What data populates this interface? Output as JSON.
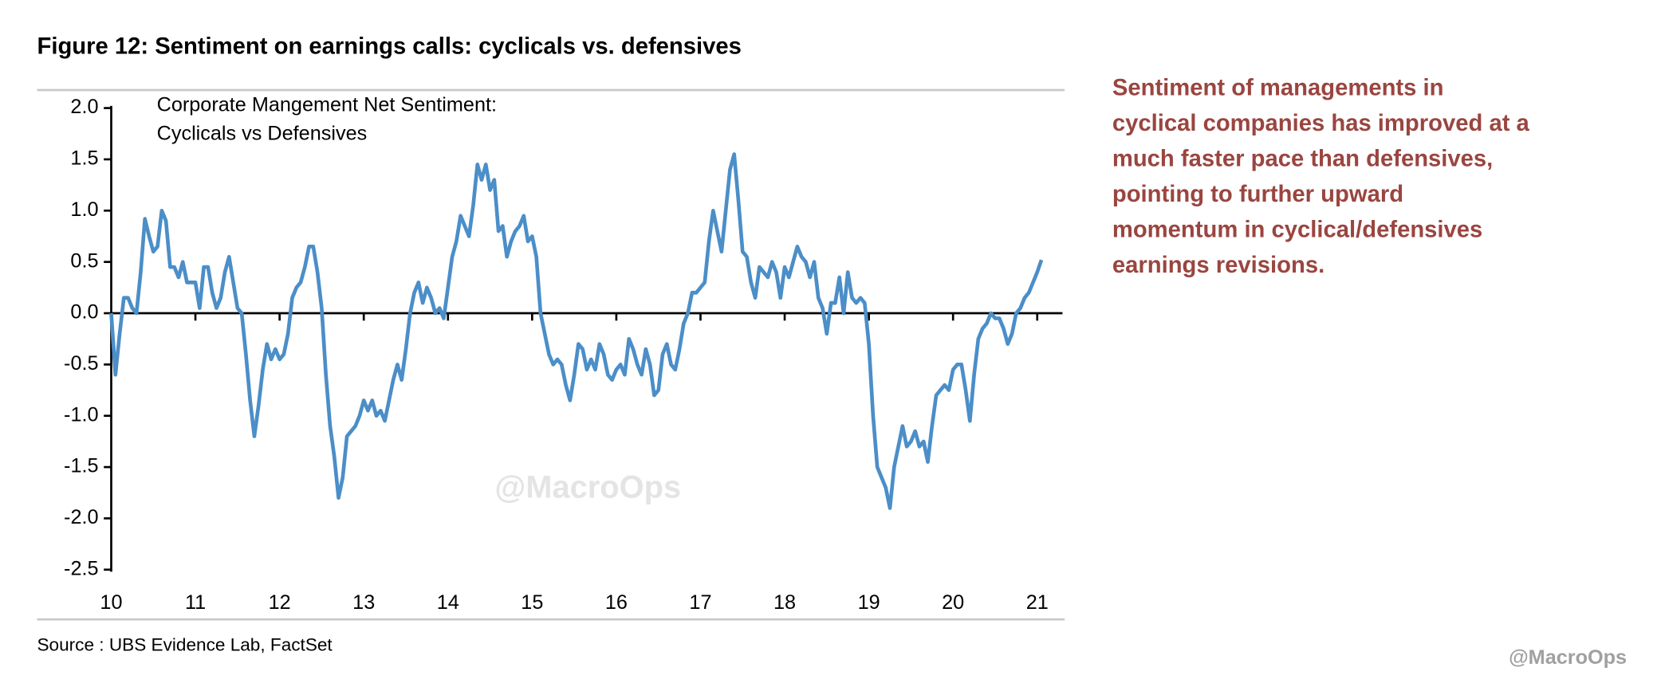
{
  "chart_data": {
    "type": "line",
    "title": "Figure 12: Sentiment on earnings calls: cyclicals vs. defensives",
    "annotations": [
      "Corporate Mangement Net Sentiment:",
      "Cyclicals vs Defensives"
    ],
    "source": "Source : UBS Evidence Lab, FactSet",
    "commentary": [
      "Sentiment of managements in",
      "cyclical companies has improved at a",
      "much faster pace than defensives,",
      "pointing to further upward",
      "momentum in cyclical/defensives",
      "earnings revisions."
    ],
    "commentary_color": "#9a4540",
    "watermarks": [
      "@MacroOps",
      "@MacroOps"
    ],
    "xlim": [
      10,
      21.3
    ],
    "xticks": [
      10,
      11,
      12,
      13,
      14,
      15,
      16,
      17,
      18,
      19,
      20,
      21
    ],
    "ylim": [
      -2.5,
      2.0
    ],
    "yticks": [
      {
        "value": 2.0,
        "label": "2.0"
      },
      {
        "value": 1.5,
        "label": "1.5"
      },
      {
        "value": 1.0,
        "label": "1.0"
      },
      {
        "value": 0.5,
        "label": "0.5"
      },
      {
        "value": 0.0,
        "label": "0.0"
      },
      {
        "value": -0.5,
        "label": "-0.5"
      },
      {
        "value": -1.0,
        "label": "-1.0"
      },
      {
        "value": -1.5,
        "label": "-1.5"
      },
      {
        "value": -2.0,
        "label": "-2.0"
      },
      {
        "value": -2.5,
        "label": "-2.5"
      }
    ],
    "grid": false,
    "x": [
      10,
      10.05,
      10.1,
      10.15,
      10.2,
      10.25,
      10.3,
      10.35,
      10.4,
      10.45,
      10.5,
      10.55,
      10.6,
      10.65,
      10.7,
      10.75,
      10.8,
      10.85,
      10.9,
      10.95,
      11,
      11.05,
      11.1,
      11.15,
      11.2,
      11.25,
      11.3,
      11.35,
      11.4,
      11.45,
      11.5,
      11.55,
      11.6,
      11.65,
      11.7,
      11.75,
      11.8,
      11.85,
      11.9,
      11.95,
      12,
      12.05,
      12.1,
      12.15,
      12.2,
      12.25,
      12.3,
      12.35,
      12.4,
      12.45,
      12.5,
      12.55,
      12.6,
      12.65,
      12.7,
      12.75,
      12.8,
      12.85,
      12.9,
      12.95,
      13,
      13.05,
      13.1,
      13.15,
      13.2,
      13.25,
      13.3,
      13.35,
      13.4,
      13.45,
      13.5,
      13.55,
      13.6,
      13.65,
      13.7,
      13.75,
      13.8,
      13.85,
      13.9,
      13.95,
      14,
      14.05,
      14.1,
      14.15,
      14.2,
      14.25,
      14.3,
      14.35,
      14.4,
      14.45,
      14.5,
      14.55,
      14.6,
      14.65,
      14.7,
      14.75,
      14.8,
      14.85,
      14.9,
      14.95,
      15,
      15.05,
      15.1,
      15.15,
      15.2,
      15.25,
      15.3,
      15.35,
      15.4,
      15.45,
      15.5,
      15.55,
      15.6,
      15.65,
      15.7,
      15.75,
      15.8,
      15.85,
      15.9,
      15.95,
      16,
      16.05,
      16.1,
      16.15,
      16.2,
      16.25,
      16.3,
      16.35,
      16.4,
      16.45,
      16.5,
      16.55,
      16.6,
      16.65,
      16.7,
      16.75,
      16.8,
      16.85,
      16.9,
      16.95,
      17,
      17.05,
      17.1,
      17.15,
      17.2,
      17.25,
      17.3,
      17.35,
      17.4,
      17.45,
      17.5,
      17.55,
      17.6,
      17.65,
      17.7,
      17.75,
      17.8,
      17.85,
      17.9,
      17.95,
      18,
      18.05,
      18.1,
      18.15,
      18.2,
      18.25,
      18.3,
      18.35,
      18.4,
      18.45,
      18.5,
      18.55,
      18.6,
      18.65,
      18.7,
      18.75,
      18.8,
      18.85,
      18.9,
      18.95,
      19,
      19.05,
      19.1,
      19.15,
      19.2,
      19.25,
      19.3,
      19.35,
      19.4,
      19.45,
      19.5,
      19.55,
      19.6,
      19.65,
      19.7,
      19.75,
      19.8,
      19.85,
      19.9,
      19.95,
      20,
      20.05,
      20.1,
      20.15,
      20.2,
      20.25,
      20.3,
      20.35,
      20.4,
      20.45,
      20.5,
      20.55,
      20.6,
      20.65,
      20.7,
      20.75,
      20.8,
      20.85,
      20.9,
      20.95,
      21,
      21.05
    ],
    "series": [
      {
        "color": "#4b8ec8",
        "values": [
          0.0,
          -0.6,
          -0.2,
          0.15,
          0.15,
          0.05,
          0.0,
          0.4,
          0.92,
          0.75,
          0.6,
          0.65,
          1.0,
          0.9,
          0.45,
          0.45,
          0.35,
          0.5,
          0.3,
          0.3,
          0.3,
          0.05,
          0.45,
          0.45,
          0.2,
          0.05,
          0.15,
          0.4,
          0.55,
          0.3,
          0.05,
          0.0,
          -0.4,
          -0.85,
          -1.2,
          -0.9,
          -0.55,
          -0.3,
          -0.45,
          -0.35,
          -0.45,
          -0.4,
          -0.2,
          0.15,
          0.25,
          0.3,
          0.45,
          0.65,
          0.65,
          0.4,
          0.05,
          -0.6,
          -1.1,
          -1.4,
          -1.8,
          -1.6,
          -1.2,
          -1.15,
          -1.1,
          -1.0,
          -0.85,
          -0.95,
          -0.85,
          -1.0,
          -0.95,
          -1.05,
          -0.85,
          -0.65,
          -0.5,
          -0.65,
          -0.35,
          0.0,
          0.2,
          0.3,
          0.1,
          0.25,
          0.15,
          0.0,
          0.05,
          -0.05,
          0.25,
          0.55,
          0.7,
          0.95,
          0.85,
          0.75,
          1.05,
          1.45,
          1.3,
          1.45,
          1.2,
          1.3,
          0.8,
          0.85,
          0.55,
          0.7,
          0.8,
          0.85,
          0.95,
          0.7,
          0.75,
          0.55,
          0.0,
          -0.2,
          -0.4,
          -0.5,
          -0.45,
          -0.5,
          -0.7,
          -0.85,
          -0.6,
          -0.3,
          -0.35,
          -0.55,
          -0.45,
          -0.55,
          -0.3,
          -0.4,
          -0.6,
          -0.65,
          -0.55,
          -0.5,
          -0.6,
          -0.25,
          -0.35,
          -0.5,
          -0.6,
          -0.35,
          -0.5,
          -0.8,
          -0.75,
          -0.4,
          -0.3,
          -0.5,
          -0.55,
          -0.35,
          -0.1,
          0.0,
          0.2,
          0.2,
          0.25,
          0.3,
          0.7,
          1.0,
          0.8,
          0.6,
          1.0,
          1.4,
          1.55,
          1.1,
          0.6,
          0.55,
          0.3,
          0.15,
          0.45,
          0.4,
          0.35,
          0.5,
          0.4,
          0.15,
          0.45,
          0.35,
          0.5,
          0.65,
          0.55,
          0.5,
          0.35,
          0.5,
          0.15,
          0.05,
          -0.2,
          0.1,
          0.1,
          0.35,
          0.0,
          0.4,
          0.15,
          0.1,
          0.15,
          0.1,
          -0.3,
          -1.0,
          -1.5,
          -1.6,
          -1.7,
          -1.9,
          -1.5,
          -1.3,
          -1.1,
          -1.3,
          -1.25,
          -1.15,
          -1.3,
          -1.25,
          -1.45,
          -1.1,
          -0.8,
          -0.75,
          -0.7,
          -0.75,
          -0.55,
          -0.5,
          -0.5,
          -0.75,
          -1.05,
          -0.6,
          -0.25,
          -0.15,
          -0.1,
          0.0,
          -0.05,
          -0.05,
          -0.15,
          -0.3,
          -0.2,
          0.0,
          0.05,
          0.15,
          0.2,
          0.3,
          0.4,
          0.52
        ]
      }
    ]
  }
}
